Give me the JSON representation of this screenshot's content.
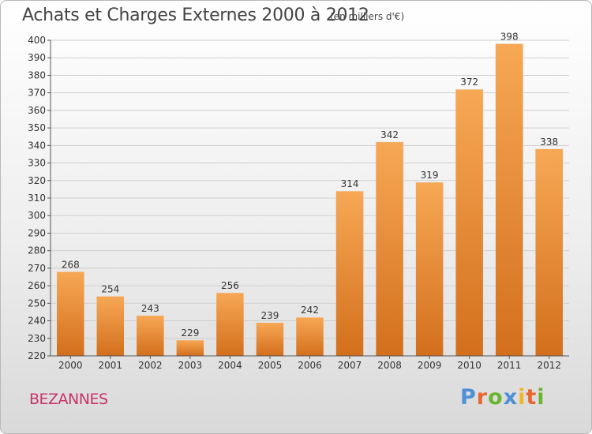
{
  "title": "Achats et Charges Externes 2000 à 2012",
  "subtitle": "(en milliers d'€)",
  "commune": "BEZANNES",
  "brand": [
    "P",
    "r",
    "o",
    "x",
    "i",
    "t",
    "i"
  ],
  "colors": {
    "bar_top": "#f7a855",
    "bar_bottom": "#d36f1c",
    "grid": "#cfcfcf"
  },
  "chart_data": {
    "type": "bar",
    "title": "Achats et Charges Externes 2000 à 2012",
    "categories": [
      "2000",
      "2001",
      "2002",
      "2003",
      "2004",
      "2005",
      "2006",
      "2007",
      "2008",
      "2009",
      "2010",
      "2011",
      "2012"
    ],
    "values": [
      268,
      254,
      243,
      229,
      256,
      239,
      242,
      314,
      342,
      319,
      372,
      398,
      338
    ],
    "ylim": [
      220,
      400
    ],
    "yticks": [
      220,
      230,
      240,
      250,
      260,
      270,
      280,
      290,
      300,
      310,
      320,
      330,
      340,
      350,
      360,
      370,
      380,
      390,
      400
    ],
    "grid": true,
    "data_labels": true
  }
}
